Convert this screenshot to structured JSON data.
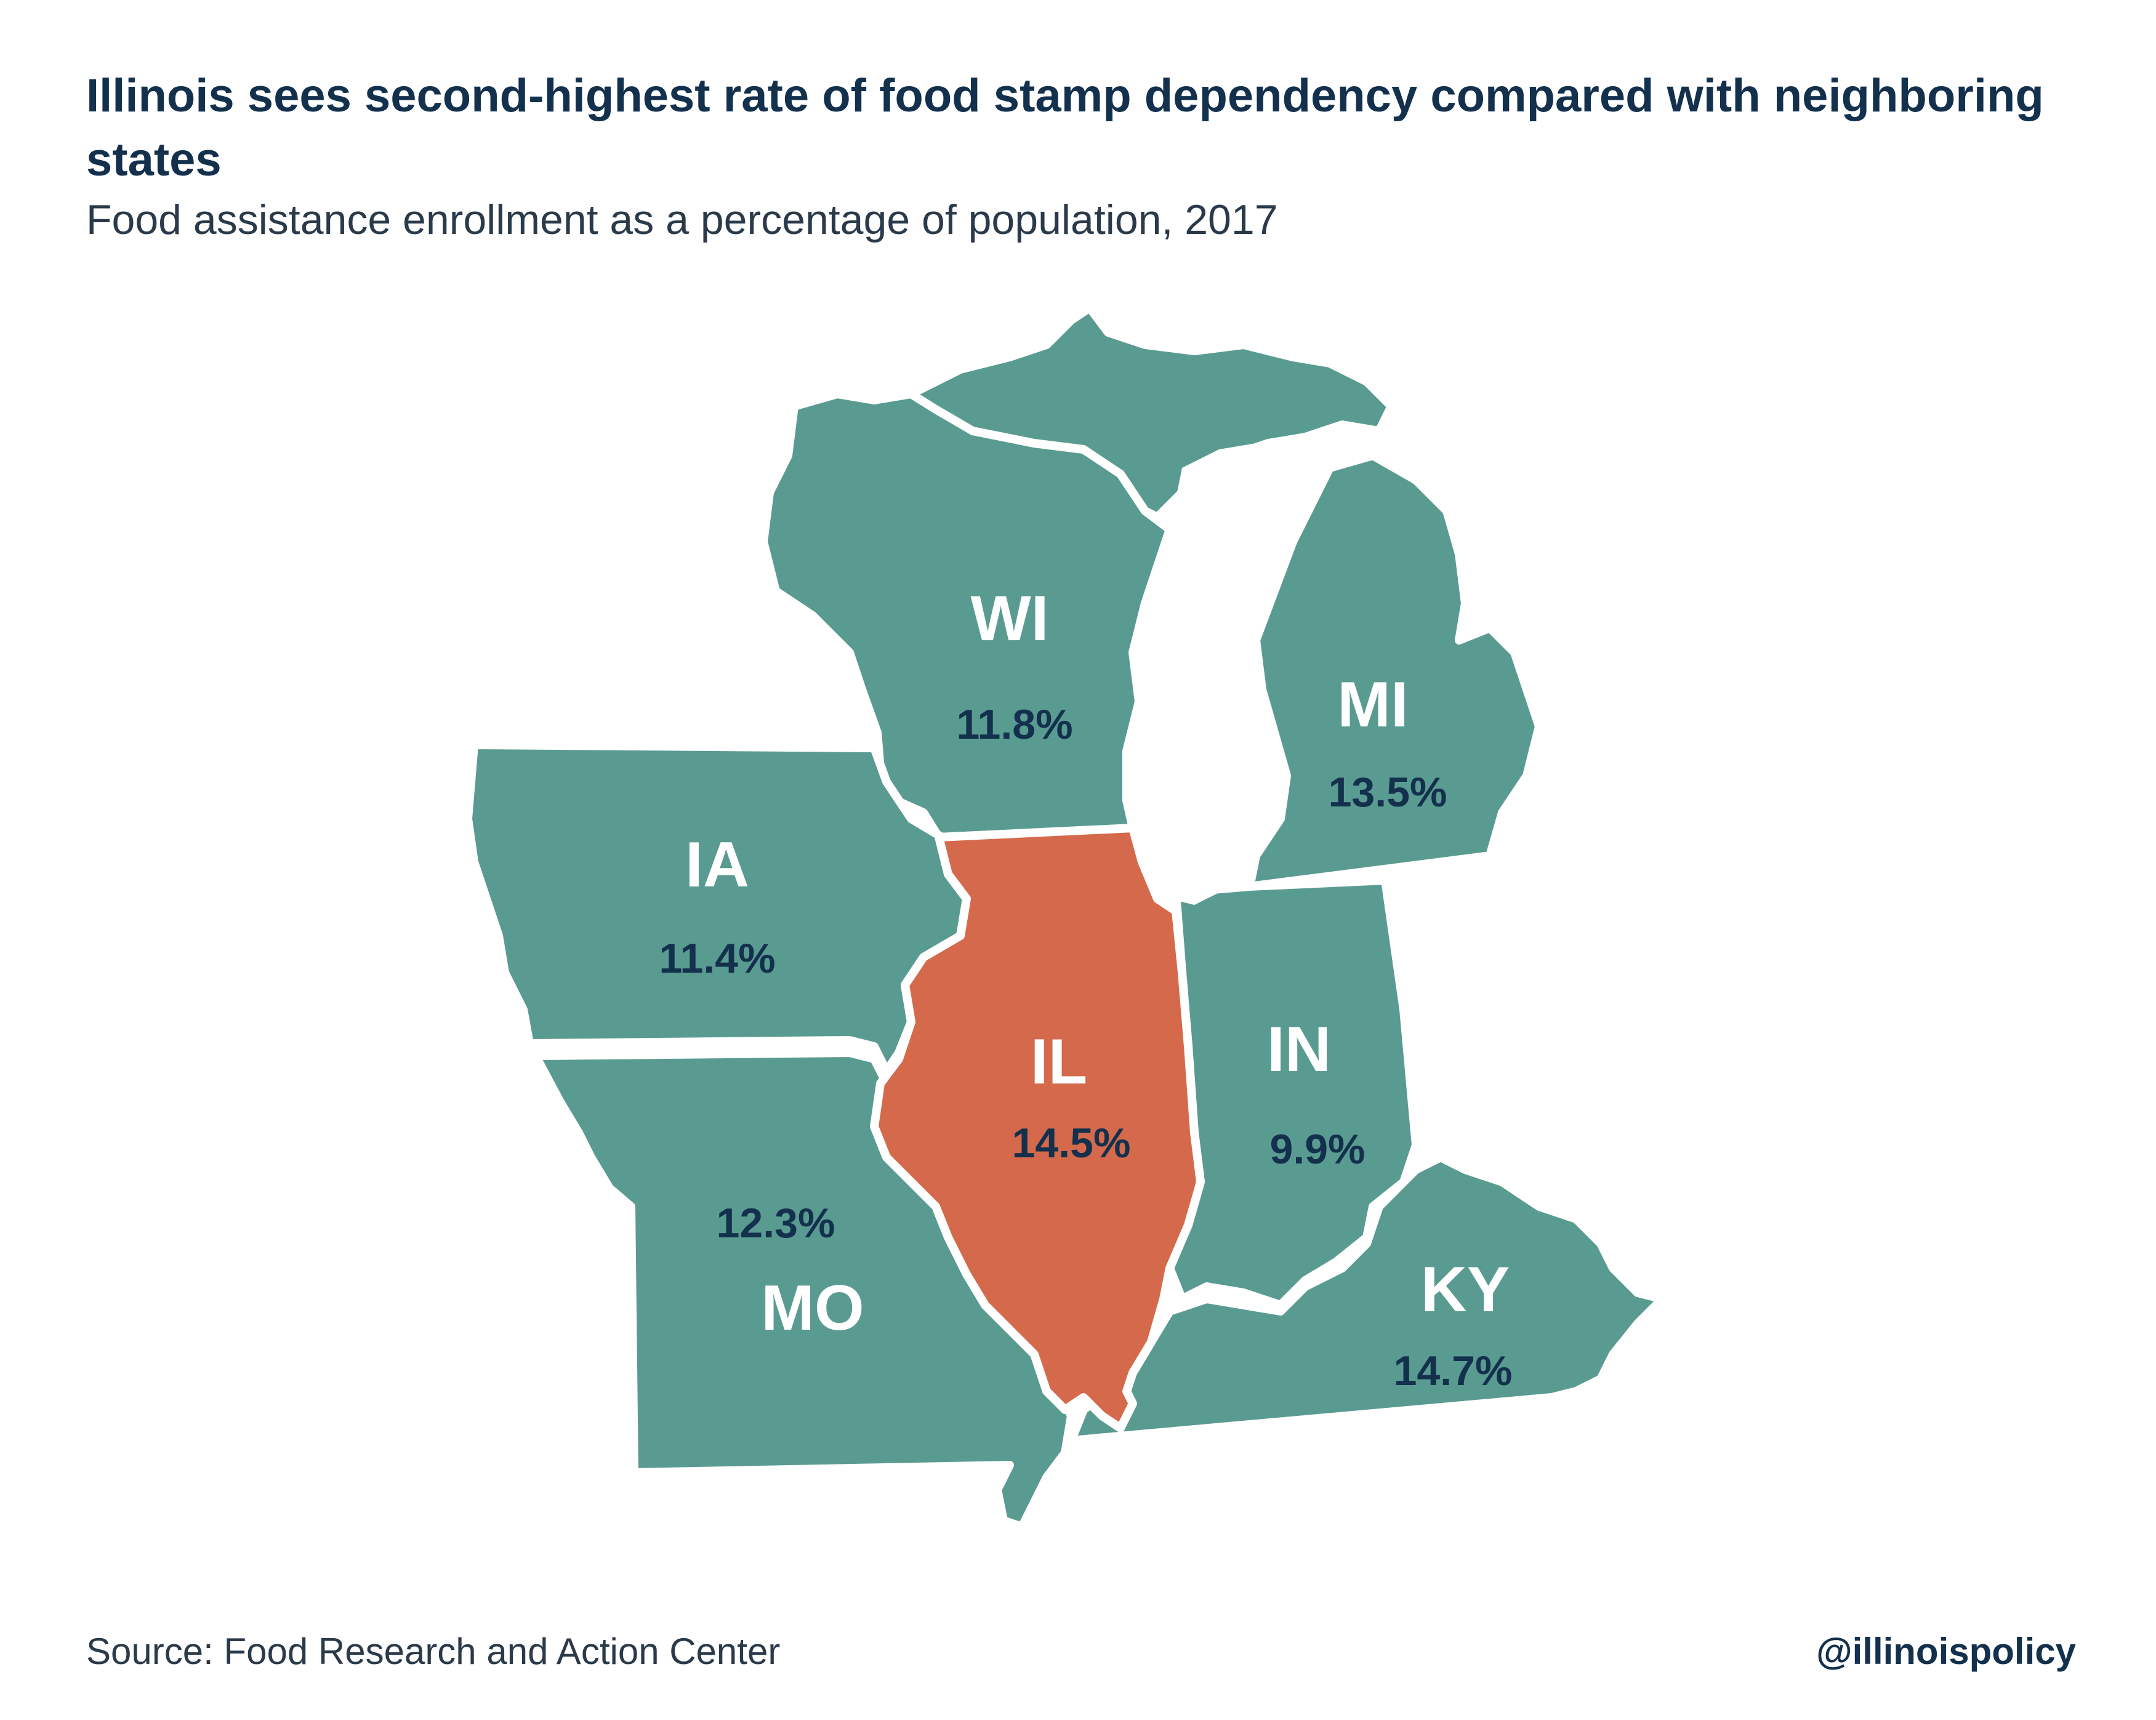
{
  "header": {
    "title": "Illinois sees second-highest rate of food stamp dependency compared with neighboring states",
    "subtitle": "Food assistance enrollment as a percentage of population, 2017"
  },
  "colors": {
    "neighbor": "#5a9b91",
    "highlight": "#d46a4b",
    "border": "#ffffff",
    "text_dark": "#13304d"
  },
  "states": {
    "wi": {
      "code": "WI",
      "value": "11.8%"
    },
    "mi": {
      "code": "MI",
      "value": "13.5%"
    },
    "ia": {
      "code": "IA",
      "value": "11.4%"
    },
    "il": {
      "code": "IL",
      "value": "14.5%"
    },
    "in": {
      "code": "IN",
      "value": "9.9%"
    },
    "mo": {
      "code": "MO",
      "value": "12.3%"
    },
    "ky": {
      "code": "KY",
      "value": "14.7%"
    }
  },
  "footer": {
    "source": "Source: Food Research and Action Center",
    "handle": "@illinoispolicy"
  }
}
